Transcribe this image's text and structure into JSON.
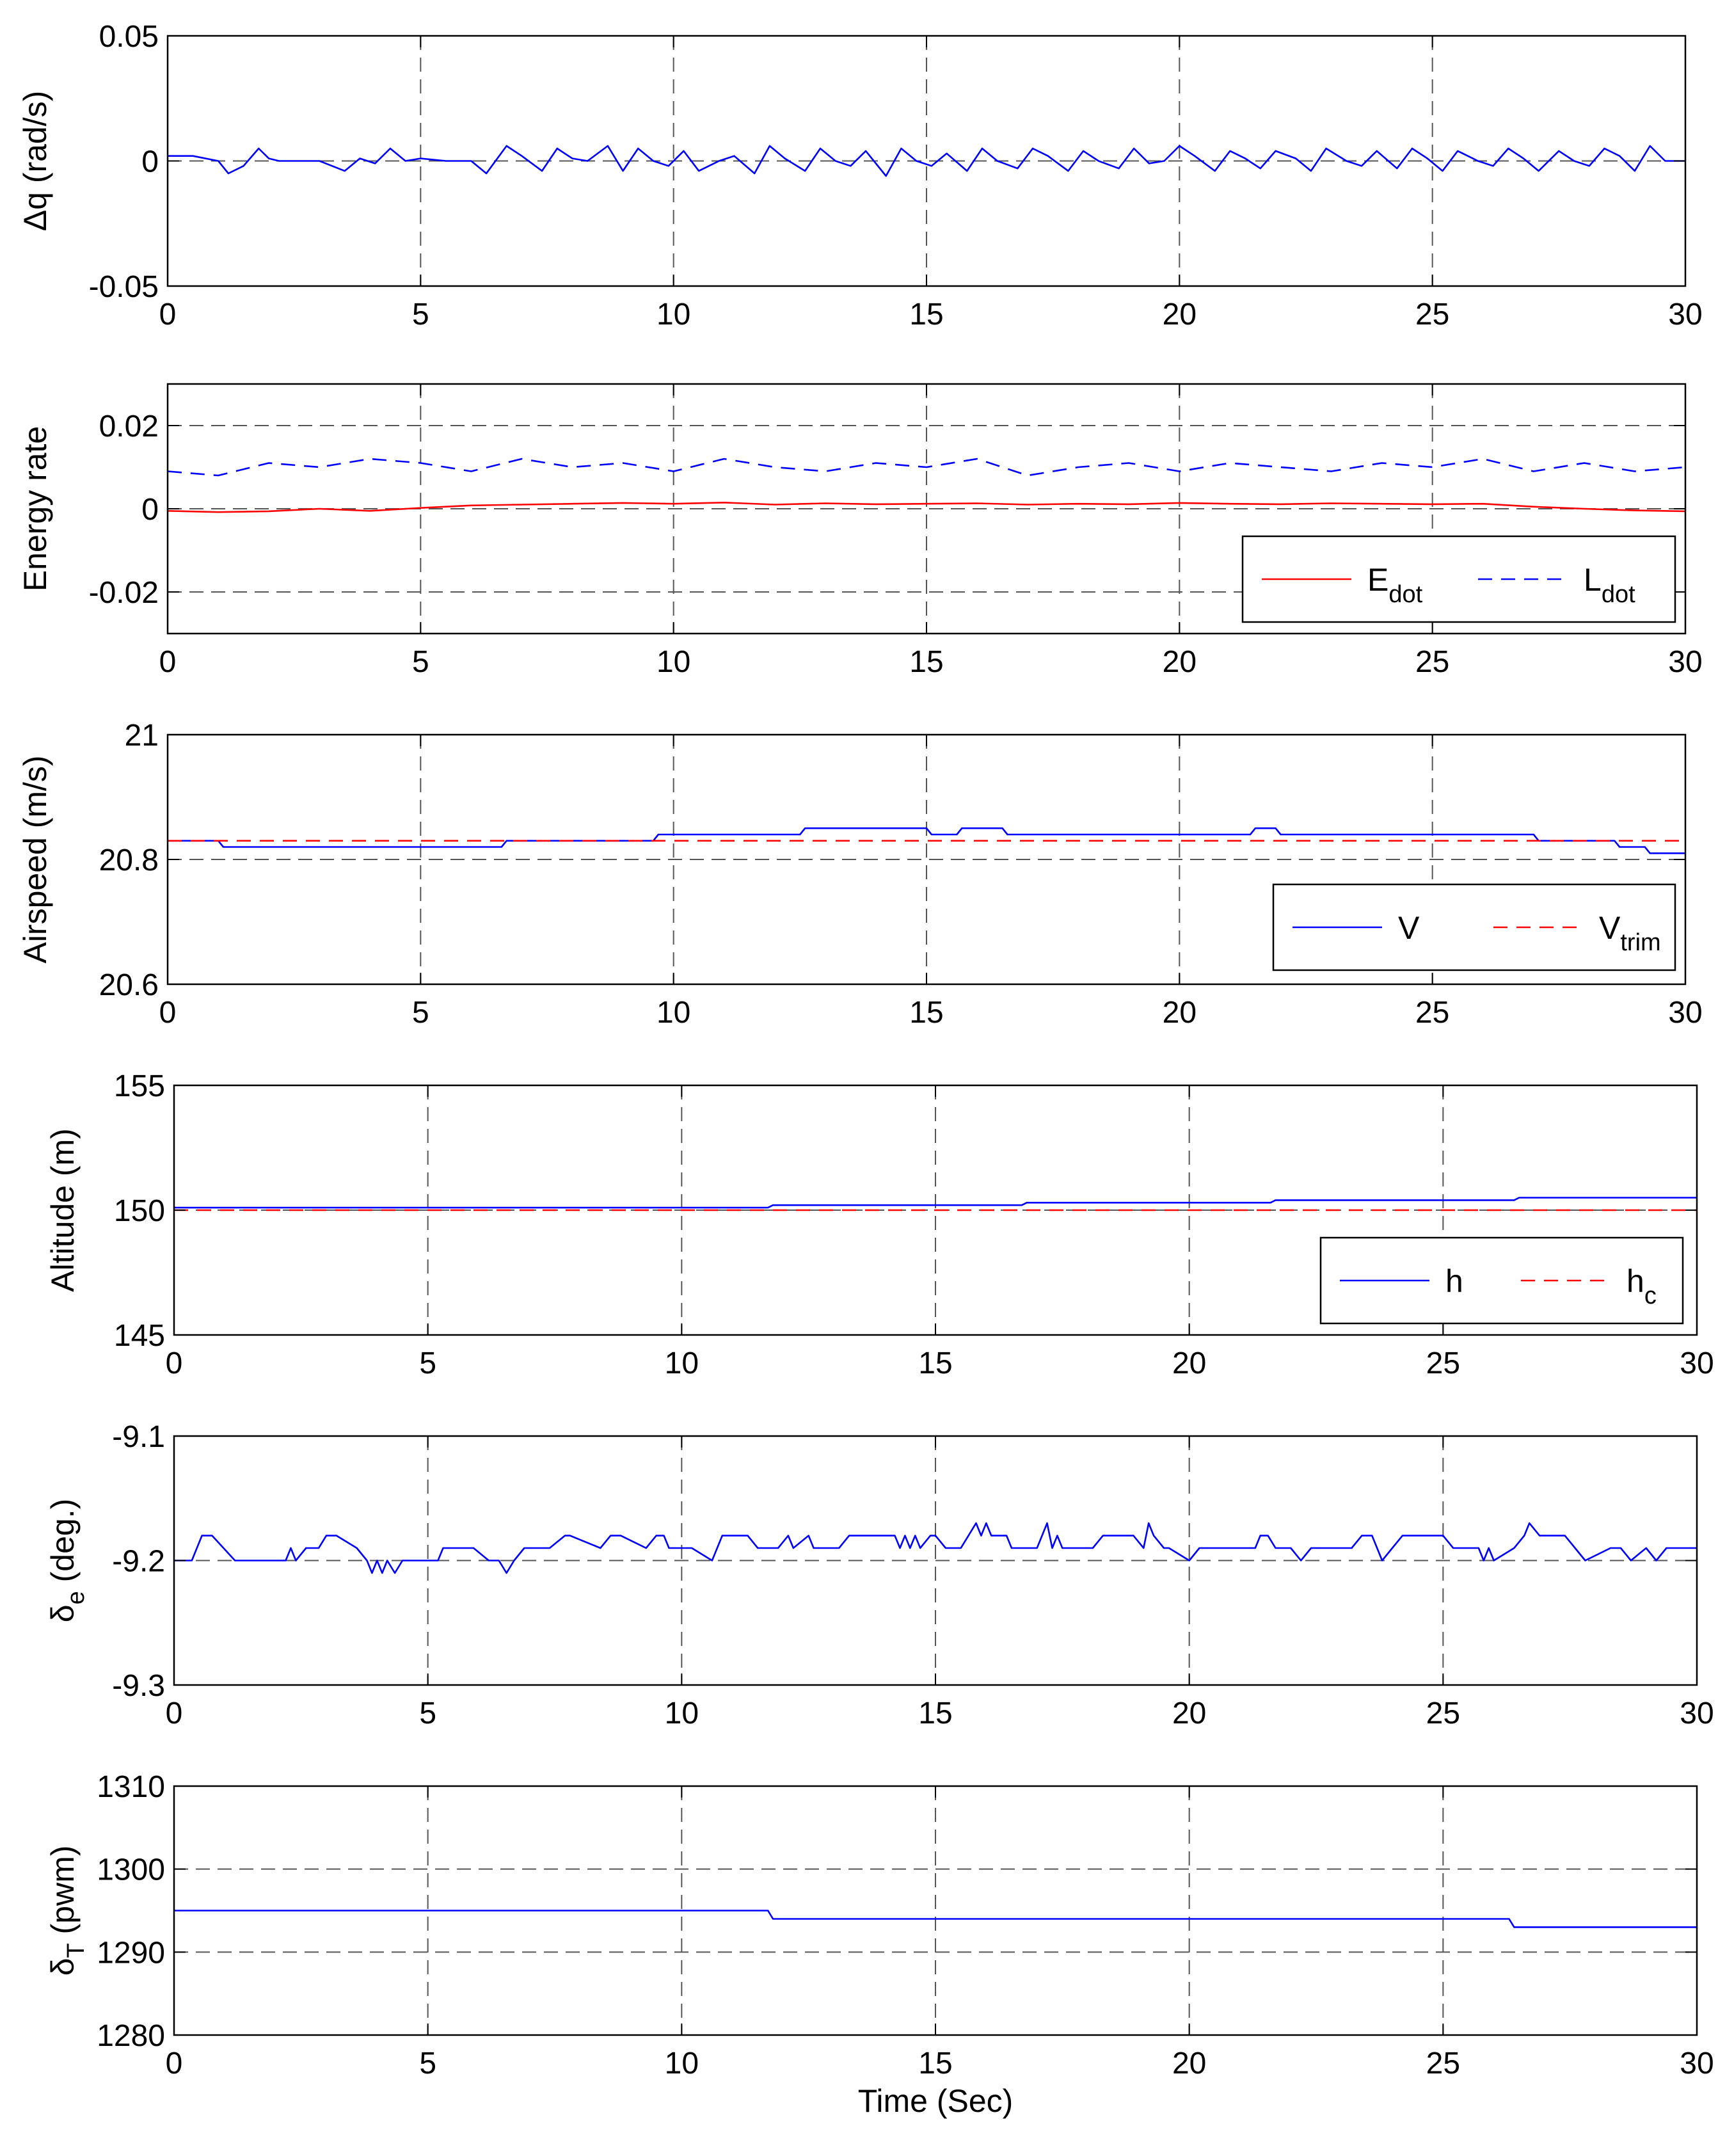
{
  "figure": {
    "xlabel": "Time (Sec)"
  },
  "chart_data": [
    {
      "id": "dq",
      "type": "line",
      "ylabel": "Δq (rad/s)",
      "xlim": [
        0,
        30
      ],
      "ylim": [
        -0.05,
        0.05
      ],
      "xticks": [
        0,
        5,
        10,
        15,
        20,
        25,
        30
      ],
      "yticks": [
        -0.05,
        0,
        0.05
      ],
      "xtick_labels": [
        "0",
        "5",
        "10",
        "15",
        "20",
        "25",
        "30"
      ],
      "ytick_labels": [
        "-0.05",
        "0",
        "0.05"
      ],
      "grid": "dashed",
      "legend": null,
      "series": [
        {
          "name": "Δq",
          "color": "#0000ff",
          "style": "solid",
          "x": [
            0,
            0.5,
            1.0,
            1.2,
            1.5,
            1.8,
            2.0,
            2.2,
            2.5,
            3.0,
            3.5,
            3.8,
            4.1,
            4.4,
            4.7,
            5.0,
            5.5,
            6.0,
            6.3,
            6.7,
            7.0,
            7.4,
            7.7,
            8.0,
            8.3,
            8.7,
            9.0,
            9.3,
            9.6,
            9.9,
            10.2,
            10.5,
            10.9,
            11.2,
            11.6,
            11.9,
            12.2,
            12.6,
            12.9,
            13.2,
            13.5,
            13.8,
            14.2,
            14.5,
            14.8,
            15.1,
            15.4,
            15.8,
            16.1,
            16.4,
            16.8,
            17.1,
            17.4,
            17.8,
            18.1,
            18.4,
            18.8,
            19.1,
            19.4,
            19.7,
            20.0,
            20.3,
            20.7,
            21.0,
            21.3,
            21.6,
            21.9,
            22.3,
            22.6,
            22.9,
            23.3,
            23.6,
            23.9,
            24.3,
            24.6,
            24.9,
            25.2,
            25.5,
            25.9,
            26.2,
            26.5,
            26.8,
            27.1,
            27.5,
            27.8,
            28.1,
            28.4,
            28.7,
            29.0,
            29.3,
            29.6,
            30.0
          ],
          "y": [
            0.002,
            0.002,
            0.0,
            -0.005,
            -0.002,
            0.005,
            0.001,
            0.0,
            0.0,
            0.0,
            -0.004,
            0.001,
            -0.001,
            0.005,
            0.0,
            0.001,
            0.0,
            0.0,
            -0.005,
            0.006,
            0.002,
            -0.004,
            0.005,
            0.001,
            0.0,
            0.006,
            -0.004,
            0.005,
            0.0,
            -0.002,
            0.004,
            -0.004,
            0.0,
            0.002,
            -0.005,
            0.006,
            0.001,
            -0.004,
            0.005,
            0.0,
            -0.002,
            0.004,
            -0.006,
            0.005,
            0.0,
            -0.002,
            0.003,
            -0.004,
            0.005,
            0.0,
            -0.003,
            0.005,
            0.002,
            -0.004,
            0.004,
            0.0,
            -0.003,
            0.005,
            -0.001,
            0.0,
            0.006,
            0.002,
            -0.004,
            0.004,
            0.001,
            -0.003,
            0.004,
            0.001,
            -0.004,
            0.005,
            0.0,
            -0.002,
            0.004,
            -0.003,
            0.005,
            0.001,
            -0.004,
            0.004,
            0.0,
            -0.002,
            0.005,
            0.001,
            -0.004,
            0.004,
            0.0,
            -0.002,
            0.005,
            0.002,
            -0.004,
            0.006,
            0.0,
            0.0
          ]
        }
      ]
    },
    {
      "id": "energy",
      "type": "line",
      "ylabel": "Energy rate",
      "xlim": [
        0,
        30
      ],
      "ylim": [
        -0.03,
        0.03
      ],
      "xticks": [
        0,
        5,
        10,
        15,
        20,
        25,
        30
      ],
      "yticks": [
        -0.02,
        0,
        0.02
      ],
      "xtick_labels": [
        "0",
        "5",
        "10",
        "15",
        "20",
        "25",
        "30"
      ],
      "ytick_labels": [
        "-0.02",
        "0",
        "0.02"
      ],
      "grid": "dashed",
      "legend": {
        "location": "bottom-right",
        "entries": [
          {
            "base": "E",
            "sub": "dot",
            "color": "#ff0000",
            "style": "solid"
          },
          {
            "base": "L",
            "sub": "dot",
            "color": "#0000ff",
            "style": "dashed"
          }
        ]
      },
      "series": [
        {
          "name": "E_dot",
          "color": "#ff0000",
          "style": "solid",
          "x": [
            0,
            1,
            2,
            3,
            4,
            5,
            6,
            7,
            8,
            9,
            10,
            11,
            12,
            13,
            14,
            15,
            16,
            17,
            18,
            19,
            20,
            21,
            22,
            23,
            24,
            25,
            26,
            27,
            28,
            29,
            30
          ],
          "y": [
            -0.0005,
            -0.0008,
            -0.0006,
            0.0,
            -0.0005,
            0.0002,
            0.0008,
            0.001,
            0.0012,
            0.0014,
            0.0012,
            0.0015,
            0.001,
            0.0013,
            0.0011,
            0.0012,
            0.0013,
            0.001,
            0.0012,
            0.0011,
            0.0014,
            0.0012,
            0.0011,
            0.0013,
            0.0012,
            0.0011,
            0.0012,
            0.0005,
            0.0,
            -0.0004,
            -0.0006
          ]
        },
        {
          "name": "L_dot",
          "color": "#0000ff",
          "style": "dashed",
          "x": [
            0,
            1,
            2,
            3,
            4,
            5,
            6,
            7,
            8,
            9,
            10,
            11,
            12,
            13,
            14,
            15,
            16,
            17,
            18,
            19,
            20,
            21,
            22,
            23,
            24,
            25,
            26,
            27,
            28,
            29,
            30
          ],
          "y": [
            0.009,
            0.008,
            0.011,
            0.01,
            0.012,
            0.011,
            0.009,
            0.012,
            0.01,
            0.011,
            0.009,
            0.012,
            0.01,
            0.009,
            0.011,
            0.01,
            0.012,
            0.008,
            0.01,
            0.011,
            0.009,
            0.011,
            0.01,
            0.009,
            0.011,
            0.01,
            0.012,
            0.009,
            0.011,
            0.009,
            0.01
          ]
        }
      ]
    },
    {
      "id": "airspeed",
      "type": "line",
      "ylabel": "Airspeed (m/s)",
      "xlim": [
        0,
        30
      ],
      "ylim": [
        20.6,
        21
      ],
      "xticks": [
        0,
        5,
        10,
        15,
        20,
        25,
        30
      ],
      "yticks": [
        20.6,
        20.8,
        21
      ],
      "xtick_labels": [
        "0",
        "5",
        "10",
        "15",
        "20",
        "25",
        "30"
      ],
      "ytick_labels": [
        "20.6",
        "20.8",
        "21"
      ],
      "grid": "dashed",
      "legend": {
        "location": "bottom-right",
        "entries": [
          {
            "base": "V",
            "sub": "",
            "color": "#0000ff",
            "style": "solid"
          },
          {
            "base": "V",
            "sub": "trim",
            "color": "#ff0000",
            "style": "dashed"
          }
        ]
      },
      "series": [
        {
          "name": "V",
          "color": "#0000ff",
          "style": "solid",
          "x": [
            0,
            1.0,
            1.1,
            6.6,
            6.7,
            9.6,
            9.7,
            11.7,
            11.8,
            12.5,
            12.6,
            15.0,
            15.1,
            15.6,
            15.7,
            16.5,
            16.6,
            17.1,
            17.2,
            21.4,
            21.5,
            21.9,
            22.0,
            27.0,
            27.1,
            28.6,
            28.7,
            29.2,
            29.3,
            30.0
          ],
          "y": [
            20.83,
            20.83,
            20.82,
            20.82,
            20.83,
            20.83,
            20.84,
            20.84,
            20.84,
            20.84,
            20.85,
            20.85,
            20.84,
            20.84,
            20.85,
            20.85,
            20.84,
            20.84,
            20.84,
            20.84,
            20.85,
            20.85,
            20.84,
            20.84,
            20.83,
            20.83,
            20.82,
            20.82,
            20.81,
            20.81
          ]
        },
        {
          "name": "V_trim",
          "color": "#ff0000",
          "style": "dashed",
          "x": [
            0,
            30
          ],
          "y": [
            20.83,
            20.83
          ]
        }
      ]
    },
    {
      "id": "altitude",
      "type": "line",
      "ylabel": "Altitude (m)",
      "xlim": [
        0,
        30
      ],
      "ylim": [
        145,
        155
      ],
      "xticks": [
        0,
        5,
        10,
        15,
        20,
        25,
        30
      ],
      "yticks": [
        145,
        150,
        155
      ],
      "xtick_labels": [
        "0",
        "5",
        "10",
        "15",
        "20",
        "25",
        "30"
      ],
      "ytick_labels": [
        "145",
        "150",
        "155"
      ],
      "grid": "dashed",
      "legend": {
        "location": "bottom-right",
        "entries": [
          {
            "base": "h",
            "sub": "",
            "color": "#0000ff",
            "style": "solid"
          },
          {
            "base": "h",
            "sub": "c",
            "color": "#ff0000",
            "style": "dashed"
          }
        ]
      },
      "series": [
        {
          "name": "h",
          "color": "#0000ff",
          "style": "solid",
          "x": [
            0,
            11.7,
            11.8,
            16.7,
            16.8,
            21.6,
            21.7,
            26.4,
            26.5,
            30.0
          ],
          "y": [
            150.1,
            150.1,
            150.2,
            150.2,
            150.3,
            150.3,
            150.4,
            150.4,
            150.5,
            150.5
          ]
        },
        {
          "name": "h_c",
          "color": "#ff0000",
          "style": "dashed",
          "x": [
            0,
            30
          ],
          "y": [
            150,
            150
          ]
        }
      ]
    },
    {
      "id": "delta_e",
      "type": "line",
      "ylabel": "δe (deg.)",
      "ylabel_base": "δ",
      "ylabel_sub": "e",
      "ylabel_rest": " (deg.)",
      "xlim": [
        0,
        30
      ],
      "ylim": [
        -9.3,
        -9.1
      ],
      "xticks": [
        0,
        5,
        10,
        15,
        20,
        25,
        30
      ],
      "yticks": [
        -9.3,
        -9.2,
        -9.1
      ],
      "xtick_labels": [
        "0",
        "5",
        "10",
        "15",
        "20",
        "25",
        "30"
      ],
      "ytick_labels": [
        "-9.3",
        "-9.2",
        "-9.1"
      ],
      "grid": "dashed",
      "legend": null,
      "series": [
        {
          "name": "δe",
          "color": "#0000ff",
          "style": "solid",
          "x": [
            0,
            0.35,
            0.55,
            0.75,
            1.2,
            1.4,
            2.2,
            2.3,
            2.4,
            2.6,
            2.85,
            3.0,
            3.2,
            3.6,
            3.8,
            3.9,
            4.0,
            4.1,
            4.2,
            4.35,
            4.5,
            4.7,
            5.0,
            5.2,
            5.3,
            5.9,
            6.2,
            6.4,
            6.55,
            6.7,
            6.9,
            7.4,
            7.7,
            7.8,
            8.4,
            8.6,
            8.8,
            9.3,
            9.5,
            9.65,
            9.75,
            10.2,
            10.6,
            10.8,
            11.3,
            11.5,
            11.9,
            12.1,
            12.2,
            12.5,
            12.6,
            13.1,
            13.3,
            14.2,
            14.3,
            14.4,
            14.5,
            14.6,
            14.7,
            14.9,
            15.0,
            15.2,
            15.5,
            15.65,
            15.8,
            15.9,
            16.0,
            16.1,
            16.4,
            16.5,
            17.0,
            17.1,
            17.2,
            17.3,
            17.4,
            17.5,
            18.1,
            18.3,
            18.9,
            19.1,
            19.2,
            19.3,
            19.5,
            19.6,
            20.0,
            20.2,
            21.3,
            21.4,
            21.55,
            21.7,
            22.0,
            22.2,
            22.4,
            23.2,
            23.4,
            23.6,
            23.7,
            23.8,
            24.0,
            24.2,
            25.0,
            25.2,
            25.7,
            25.8,
            25.9,
            26.0,
            26.4,
            26.6,
            26.7,
            26.9,
            27.4,
            27.6,
            27.8,
            28.3,
            28.5,
            28.7,
            29.0,
            29.2,
            29.4,
            29.6,
            30.0
          ],
          "y": [
            -9.2,
            -9.2,
            -9.18,
            -9.18,
            -9.2,
            -9.2,
            -9.2,
            -9.19,
            -9.2,
            -9.19,
            -9.19,
            -9.18,
            -9.18,
            -9.19,
            -9.2,
            -9.21,
            -9.2,
            -9.21,
            -9.2,
            -9.21,
            -9.2,
            -9.2,
            -9.2,
            -9.2,
            -9.19,
            -9.19,
            -9.2,
            -9.2,
            -9.21,
            -9.2,
            -9.19,
            -9.19,
            -9.18,
            -9.18,
            -9.19,
            -9.18,
            -9.18,
            -9.19,
            -9.18,
            -9.18,
            -9.19,
            -9.19,
            -9.2,
            -9.18,
            -9.18,
            -9.19,
            -9.19,
            -9.18,
            -9.19,
            -9.18,
            -9.19,
            -9.19,
            -9.18,
            -9.18,
            -9.19,
            -9.18,
            -9.19,
            -9.18,
            -9.19,
            -9.18,
            -9.18,
            -9.19,
            -9.19,
            -9.18,
            -9.17,
            -9.18,
            -9.17,
            -9.18,
            -9.18,
            -9.19,
            -9.19,
            -9.18,
            -9.17,
            -9.19,
            -9.18,
            -9.19,
            -9.19,
            -9.18,
            -9.18,
            -9.19,
            -9.17,
            -9.18,
            -9.19,
            -9.19,
            -9.2,
            -9.19,
            -9.19,
            -9.18,
            -9.18,
            -9.19,
            -9.19,
            -9.2,
            -9.19,
            -9.19,
            -9.18,
            -9.18,
            -9.19,
            -9.2,
            -9.19,
            -9.18,
            -9.18,
            -9.19,
            -9.19,
            -9.2,
            -9.19,
            -9.2,
            -9.19,
            -9.18,
            -9.17,
            -9.18,
            -9.18,
            -9.19,
            -9.2,
            -9.19,
            -9.19,
            -9.2,
            -9.19,
            -9.2,
            -9.19,
            -9.19,
            -9.19
          ]
        }
      ]
    },
    {
      "id": "delta_t",
      "type": "line",
      "ylabel": "δT (pwm)",
      "ylabel_base": "δ",
      "ylabel_sub": "T",
      "ylabel_rest": " (pwm)",
      "xlim": [
        0,
        30
      ],
      "ylim": [
        1280,
        1310
      ],
      "xticks": [
        0,
        5,
        10,
        15,
        20,
        25,
        30
      ],
      "yticks": [
        1280,
        1290,
        1300,
        1310
      ],
      "xtick_labels": [
        "0",
        "5",
        "10",
        "15",
        "20",
        "25",
        "30"
      ],
      "ytick_labels": [
        "1280",
        "1290",
        "1300",
        "1310"
      ],
      "grid": "dashed",
      "legend": null,
      "series": [
        {
          "name": "δT",
          "color": "#0000ff",
          "style": "solid",
          "x": [
            0,
            11.7,
            11.8,
            26.3,
            26.4,
            30.0
          ],
          "y": [
            1295,
            1295,
            1294,
            1294,
            1293,
            1293
          ]
        }
      ]
    }
  ]
}
